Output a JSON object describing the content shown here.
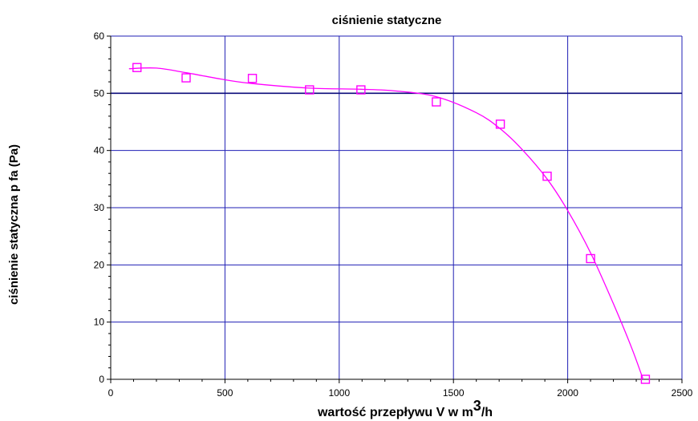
{
  "chart_data": {
    "type": "scatter",
    "title": "ciśnienie statyczne",
    "xlabel_main": "wartość przepływu V w m",
    "xlabel_sup": "3",
    "xlabel_tail": "/h",
    "ylabel": "ciśnienie statyczna p fa (Pa)",
    "xlim": [
      0,
      2500
    ],
    "ylim": [
      0,
      60
    ],
    "xticks": [
      0,
      500,
      1000,
      1500,
      2000,
      2500
    ],
    "yticks": [
      0,
      10,
      20,
      30,
      40,
      50,
      60
    ],
    "x_tick_labels": [
      "0",
      "500",
      "1000",
      "1500",
      "2000",
      "2500"
    ],
    "y_tick_labels": [
      "0",
      "10",
      "20",
      "30",
      "40",
      "50",
      "60"
    ],
    "grid": true,
    "series": [
      {
        "points": [
          {
            "x": 115,
            "y": 54.5
          },
          {
            "x": 330,
            "y": 52.7
          },
          {
            "x": 620,
            "y": 52.6
          },
          {
            "x": 870,
            "y": 50.6
          },
          {
            "x": 1095,
            "y": 50.6
          },
          {
            "x": 1425,
            "y": 48.5
          },
          {
            "x": 1705,
            "y": 44.6
          },
          {
            "x": 1910,
            "y": 35.5
          },
          {
            "x": 2100,
            "y": 21.1
          },
          {
            "x": 2340,
            "y": 0
          }
        ],
        "fit_curve": [
          {
            "x": 80,
            "y": 54.3
          },
          {
            "x": 200,
            "y": 54.4
          },
          {
            "x": 330,
            "y": 53.6
          },
          {
            "x": 480,
            "y": 52.5
          },
          {
            "x": 620,
            "y": 51.7
          },
          {
            "x": 870,
            "y": 50.9
          },
          {
            "x": 1095,
            "y": 50.7
          },
          {
            "x": 1250,
            "y": 50.4
          },
          {
            "x": 1425,
            "y": 49.4
          },
          {
            "x": 1600,
            "y": 46.6
          },
          {
            "x": 1705,
            "y": 43.8
          },
          {
            "x": 1800,
            "y": 40.2
          },
          {
            "x": 1910,
            "y": 35.0
          },
          {
            "x": 2000,
            "y": 29.5
          },
          {
            "x": 2100,
            "y": 22.1
          },
          {
            "x": 2200,
            "y": 13.2
          },
          {
            "x": 2280,
            "y": 5.5
          },
          {
            "x": 2330,
            "y": 0
          }
        ],
        "color": "#ff00ff"
      }
    ],
    "colors": {
      "grid": "#1f1fb4",
      "grid_major": "#0b0b7a",
      "axis": "#000000"
    }
  }
}
